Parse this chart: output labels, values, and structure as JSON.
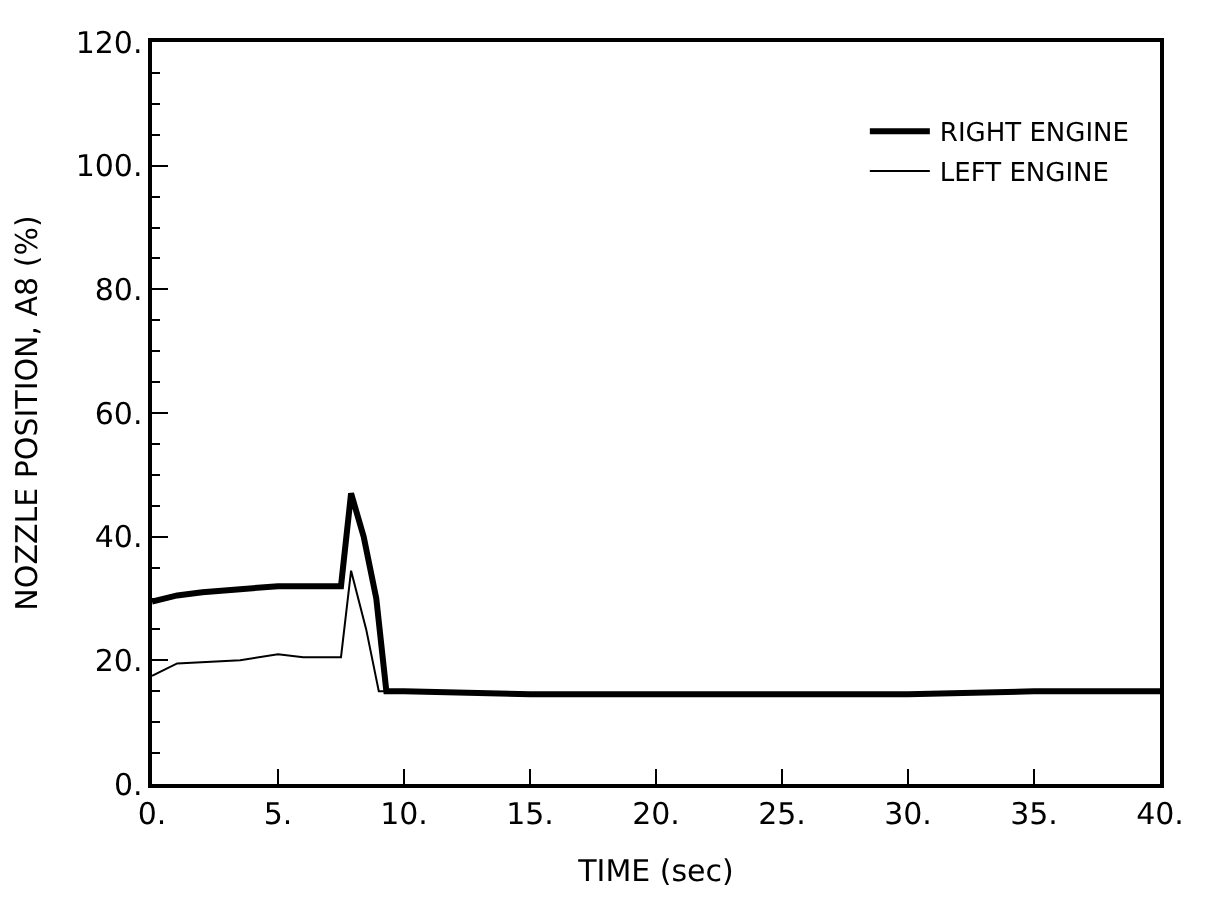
{
  "chart_data": {
    "type": "line",
    "xlabel": "TIME (sec)",
    "ylabel": "NOZZLE POSITION, A8 (%)",
    "xlim": [
      0,
      40
    ],
    "ylim": [
      0,
      120
    ],
    "xticks": [
      {
        "value": 0,
        "label": "0."
      },
      {
        "value": 5,
        "label": "5."
      },
      {
        "value": 10,
        "label": "10."
      },
      {
        "value": 15,
        "label": "15."
      },
      {
        "value": 20,
        "label": "20."
      },
      {
        "value": 25,
        "label": "25."
      },
      {
        "value": 30,
        "label": "30."
      },
      {
        "value": 35,
        "label": "35."
      },
      {
        "value": 40,
        "label": "40."
      }
    ],
    "yticks": [
      {
        "value": 0,
        "label": "0."
      },
      {
        "value": 5,
        "label": null
      },
      {
        "value": 10,
        "label": null
      },
      {
        "value": 15,
        "label": null
      },
      {
        "value": 20,
        "label": "20."
      },
      {
        "value": 25,
        "label": null
      },
      {
        "value": 30,
        "label": null
      },
      {
        "value": 35,
        "label": null
      },
      {
        "value": 40,
        "label": "40."
      },
      {
        "value": 45,
        "label": null
      },
      {
        "value": 50,
        "label": null
      },
      {
        "value": 55,
        "label": null
      },
      {
        "value": 60,
        "label": "60."
      },
      {
        "value": 65,
        "label": null
      },
      {
        "value": 70,
        "label": null
      },
      {
        "value": 75,
        "label": null
      },
      {
        "value": 80,
        "label": "80."
      },
      {
        "value": 85,
        "label": null
      },
      {
        "value": 90,
        "label": null
      },
      {
        "value": 95,
        "label": null
      },
      {
        "value": 100,
        "label": "100."
      },
      {
        "value": 105,
        "label": null
      },
      {
        "value": 110,
        "label": null
      },
      {
        "value": 115,
        "label": null
      },
      {
        "value": 120,
        "label": "120."
      }
    ],
    "legend": "top right",
    "marker": "none",
    "line_style": "solid",
    "series": [
      {
        "name": "RIGHT ENGINE",
        "color": "#000000",
        "x": [
          0,
          1,
          2,
          3.5,
          5,
          6.5,
          7.5,
          7.9,
          8.4,
          8.9,
          9.3,
          10,
          15,
          20,
          30,
          35,
          40
        ],
        "values": [
          29.5,
          30.5,
          31,
          31.5,
          32,
          32,
          32,
          47,
          40,
          30,
          15,
          15,
          14.5,
          14.5,
          14.5,
          15,
          15
        ]
      },
      {
        "name": "LEFT ENGINE",
        "color": "#000000",
        "x": [
          0,
          0.5,
          1,
          3.5,
          5,
          6,
          7.5,
          7.9,
          8.5,
          9.0,
          9.5,
          10,
          15,
          20,
          30,
          35,
          40
        ],
        "values": [
          17.5,
          18.5,
          19.5,
          20,
          21,
          20.5,
          20.5,
          34.5,
          25,
          15,
          15,
          15,
          14.5,
          14.5,
          14.5,
          15,
          15
        ]
      }
    ]
  }
}
